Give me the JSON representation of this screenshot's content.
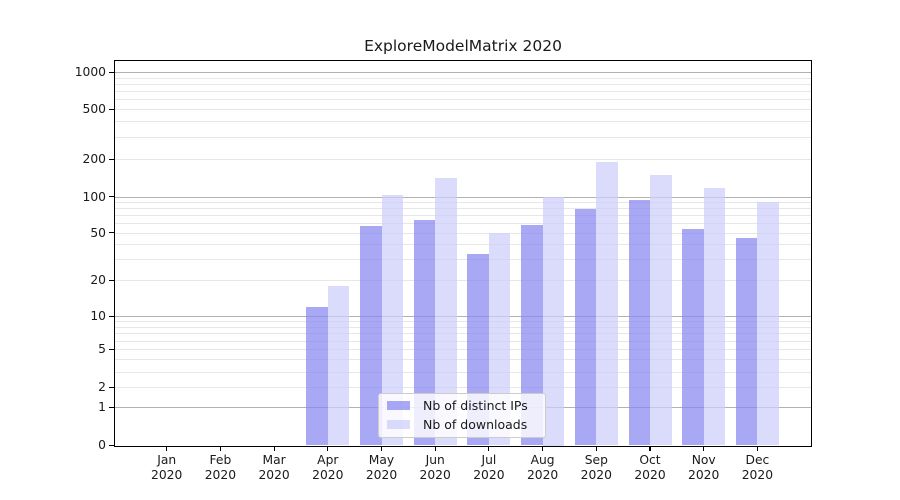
{
  "chart_data": {
    "type": "bar",
    "title": "ExploreModelMatrix 2020",
    "categories": [
      "Jan",
      "Feb",
      "Mar",
      "Apr",
      "May",
      "Jun",
      "Jul",
      "Aug",
      "Sep",
      "Oct",
      "Nov",
      "Dec"
    ],
    "year": "2020",
    "series": [
      {
        "name": "Nb of distinct IPs",
        "color": "rgba(134,134,240,0.72)",
        "values": [
          0,
          0,
          0,
          12,
          57,
          64,
          33,
          58,
          78,
          93,
          54,
          45
        ]
      },
      {
        "name": "Nb of downloads",
        "color": "rgba(205,205,250,0.72)",
        "values": [
          0,
          0,
          0,
          18,
          102,
          140,
          50,
          100,
          188,
          150,
          118,
          90
        ]
      }
    ],
    "yticks": [
      1000,
      500,
      200,
      100,
      50,
      20,
      10,
      5,
      2,
      1,
      0
    ],
    "yscale": "pseudo-log-asinh",
    "ylim": [
      0,
      1300
    ],
    "xlabel": "",
    "ylabel": "",
    "grid": "major-and-minor-horizontal",
    "legend_position": "inside-bottom-center",
    "colors": {
      "major_grid": "#b2b2b2",
      "minor_grid": "#e7e7e7",
      "spine": "#000000",
      "text": "#1a1a1a"
    }
  }
}
